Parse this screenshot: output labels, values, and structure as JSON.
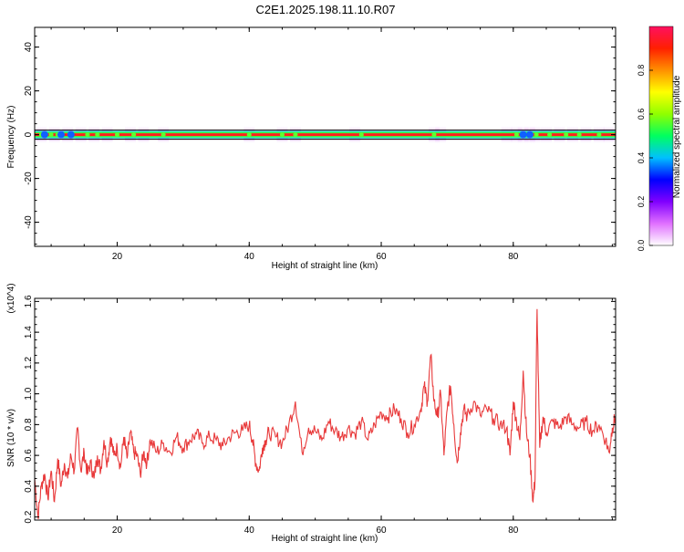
{
  "title": "C2E1.2025.198.11.10.R07",
  "chart_data": [
    {
      "type": "heatmap",
      "title": "C2E1.2025.198.11.10.R07",
      "xlabel": "Height of straight line (km)",
      "ylabel": "Frequency (Hz)",
      "xlim": [
        7.5,
        95.5
      ],
      "ylim": [
        -51,
        49
      ],
      "x_ticks": [
        20,
        40,
        60,
        80
      ],
      "y_ticks": [
        -40,
        -20,
        0,
        20,
        40
      ],
      "x_tick_labels": [
        "20",
        "40",
        "60",
        "80"
      ],
      "y_tick_labels": [
        "-40",
        "-20",
        "0",
        "20",
        "40"
      ],
      "band_center_hz": 0,
      "colorbar": {
        "label": "Normalized spectral amplitude",
        "range": [
          0,
          1
        ],
        "ticks": [
          0.0,
          0.2,
          0.4,
          0.6,
          0.8
        ],
        "tick_labels": [
          "0.0",
          "0.2",
          "0.4",
          "0.6",
          "0.8"
        ],
        "colors": [
          "#ffffff",
          "#e070ff",
          "#8000ff",
          "#0000ff",
          "#00c0ff",
          "#00ff60",
          "#90ff00",
          "#ffff00",
          "#ff9000",
          "#ff2000",
          "#ff1060"
        ]
      },
      "grid": false
    },
    {
      "type": "line",
      "xlabel": "Height of straight line (km)",
      "ylabel": "SNR (10 * v/v)",
      "y_scale_label": "(x10^4)",
      "xlim": [
        7.5,
        95.5
      ],
      "ylim": [
        0.18,
        1.62
      ],
      "x_ticks": [
        20,
        40,
        60,
        80
      ],
      "x_tick_labels": [
        "20",
        "40",
        "60",
        "80"
      ],
      "y_ticks": [
        0.2,
        0.4,
        0.6,
        0.8,
        1.0,
        1.2,
        1.4,
        1.6
      ],
      "y_tick_labels": [
        "0.2",
        "0.4",
        "0.6",
        "0.8",
        "1.0",
        "1.2",
        "1.4",
        "1.6"
      ],
      "color": "#e8393a",
      "grid": false,
      "series": [
        {
          "x": [
            7.5,
            8.0,
            8.5,
            9.0,
            9.5,
            10.0,
            10.5,
            11.0,
            11.5,
            12.0,
            12.5,
            13.0,
            13.5,
            14.0,
            14.5,
            15.0,
            15.5,
            16.0,
            16.5,
            17.0,
            17.5,
            18.0,
            18.5,
            19.0,
            19.5,
            20.0,
            20.5,
            21.0,
            21.5,
            22.0,
            22.5,
            23.0,
            23.5,
            24.0,
            24.5,
            25.0,
            26.0,
            27.0,
            28.0,
            29.0,
            30.0,
            31.0,
            32.0,
            33.0,
            34.0,
            35.0,
            36.0,
            37.0,
            38.0,
            39.0,
            40.0,
            40.5,
            41.0,
            41.5,
            42.0,
            42.5,
            43.0,
            44.0,
            45.0,
            46.0,
            47.0,
            48.0,
            49.0,
            50.0,
            51.0,
            52.0,
            53.0,
            54.0,
            55.0,
            56.0,
            57.0,
            58.0,
            59.0,
            60.0,
            61.0,
            62.0,
            63.0,
            64.0,
            65.0,
            66.0,
            66.5,
            67.0,
            67.5,
            68.0,
            68.5,
            69.0,
            69.5,
            70.0,
            70.5,
            71.0,
            71.5,
            72.0,
            72.5,
            73.0,
            74.0,
            75.0,
            76.0,
            77.0,
            78.0,
            79.0,
            79.5,
            80.0,
            80.5,
            81.0,
            81.5,
            82.0,
            82.5,
            83.0,
            83.3,
            83.6,
            84.0,
            84.5,
            85.0,
            86.0,
            87.0,
            88.0,
            89.0,
            90.0,
            91.0,
            92.0,
            93.0,
            94.0,
            94.5,
            95.0,
            95.5
          ],
          "values": [
            0.45,
            0.2,
            0.4,
            0.48,
            0.32,
            0.5,
            0.3,
            0.58,
            0.4,
            0.55,
            0.45,
            0.6,
            0.5,
            0.78,
            0.5,
            0.62,
            0.48,
            0.55,
            0.45,
            0.6,
            0.5,
            0.7,
            0.55,
            0.72,
            0.6,
            0.65,
            0.52,
            0.72,
            0.58,
            0.75,
            0.62,
            0.6,
            0.48,
            0.62,
            0.55,
            0.7,
            0.62,
            0.68,
            0.62,
            0.72,
            0.65,
            0.7,
            0.74,
            0.68,
            0.72,
            0.7,
            0.66,
            0.72,
            0.75,
            0.76,
            0.8,
            0.7,
            0.55,
            0.5,
            0.65,
            0.7,
            0.75,
            0.72,
            0.68,
            0.8,
            0.95,
            0.62,
            0.78,
            0.76,
            0.7,
            0.82,
            0.76,
            0.72,
            0.78,
            0.74,
            0.82,
            0.7,
            0.8,
            0.88,
            0.85,
            0.9,
            0.84,
            0.75,
            0.8,
            0.9,
            1.05,
            0.95,
            1.25,
            0.95,
            0.85,
            1.0,
            0.6,
            0.9,
            1.05,
            0.8,
            0.55,
            0.75,
            0.9,
            0.85,
            0.95,
            0.86,
            0.9,
            0.84,
            0.8,
            0.78,
            0.6,
            0.95,
            0.82,
            0.7,
            1.15,
            0.75,
            0.6,
            0.3,
            0.45,
            1.55,
            0.65,
            0.85,
            0.75,
            0.82,
            0.78,
            0.85,
            0.8,
            0.78,
            0.82,
            0.76,
            0.8,
            0.7,
            0.62,
            0.78,
            0.85
          ]
        }
      ]
    }
  ]
}
